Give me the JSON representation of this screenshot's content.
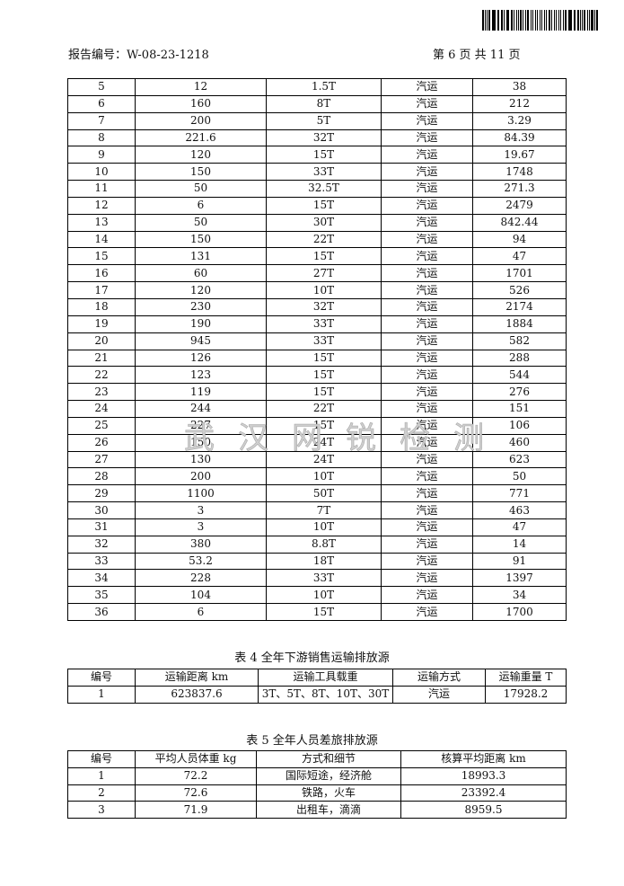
{
  "header": {
    "report_no": "报告编号：W-08-23-1218",
    "page_info": "第 6 页   共 11 页"
  },
  "watermark": "武汉网锐检测",
  "table3": {
    "rows": [
      [
        "5",
        "12",
        "1.5T",
        "汽运",
        "38"
      ],
      [
        "6",
        "160",
        "8T",
        "汽运",
        "212"
      ],
      [
        "7",
        "200",
        "5T",
        "汽运",
        "3.29"
      ],
      [
        "8",
        "221.6",
        "32T",
        "汽运",
        "84.39"
      ],
      [
        "9",
        "120",
        "15T",
        "汽运",
        "19.67"
      ],
      [
        "10",
        "150",
        "33T",
        "汽运",
        "1748"
      ],
      [
        "11",
        "50",
        "32.5T",
        "汽运",
        "271.3"
      ],
      [
        "12",
        "6",
        "15T",
        "汽运",
        "2479"
      ],
      [
        "13",
        "50",
        "30T",
        "汽运",
        "842.44"
      ],
      [
        "14",
        "150",
        "22T",
        "汽运",
        "94"
      ],
      [
        "15",
        "131",
        "15T",
        "汽运",
        "47"
      ],
      [
        "16",
        "60",
        "27T",
        "汽运",
        "1701"
      ],
      [
        "17",
        "120",
        "10T",
        "汽运",
        "526"
      ],
      [
        "18",
        "230",
        "32T",
        "汽运",
        "2174"
      ],
      [
        "19",
        "190",
        "33T",
        "汽运",
        "1884"
      ],
      [
        "20",
        "945",
        "33T",
        "汽运",
        "582"
      ],
      [
        "21",
        "126",
        "15T",
        "汽运",
        "288"
      ],
      [
        "22",
        "123",
        "15T",
        "汽运",
        "544"
      ],
      [
        "23",
        "119",
        "15T",
        "汽运",
        "276"
      ],
      [
        "24",
        "244",
        "22T",
        "汽运",
        "151"
      ],
      [
        "25",
        "227",
        "15T",
        "汽运",
        "106"
      ],
      [
        "26",
        "150",
        "24T",
        "汽运",
        "460"
      ],
      [
        "27",
        "130",
        "24T",
        "汽运",
        "623"
      ],
      [
        "28",
        "200",
        "10T",
        "汽运",
        "50"
      ],
      [
        "29",
        "1100",
        "50T",
        "汽运",
        "771"
      ],
      [
        "30",
        "3",
        "7T",
        "汽运",
        "463"
      ],
      [
        "31",
        "3",
        "10T",
        "汽运",
        "47"
      ],
      [
        "32",
        "380",
        "8.8T",
        "汽运",
        "14"
      ],
      [
        "33",
        "53.2",
        "18T",
        "汽运",
        "91"
      ],
      [
        "34",
        "228",
        "33T",
        "汽运",
        "1397"
      ],
      [
        "35",
        "104",
        "10T",
        "汽运",
        "34"
      ],
      [
        "36",
        "6",
        "15T",
        "汽运",
        "1700"
      ]
    ]
  },
  "table4": {
    "caption": "表 4  全年下游销售运输排放源",
    "headers": [
      "编号",
      "运输距离 km",
      "运输工具载重",
      "运输方式",
      "运输重量 T"
    ],
    "rows": [
      [
        "1",
        "623837.6",
        "3T、5T、8T、10T、30T",
        "汽运",
        "17928.2"
      ]
    ]
  },
  "table5": {
    "caption": "表 5  全年人员差旅排放源",
    "headers": [
      "编号",
      "平均人员体重 kg",
      "方式和细节",
      "核算平均距离 km"
    ],
    "rows": [
      [
        "1",
        "72.2",
        "国际短途，经济舱",
        "18993.3"
      ],
      [
        "2",
        "72.6",
        "铁路，火车",
        "23392.4"
      ],
      [
        "3",
        "71.9",
        "出租车，滴滴",
        "8959.5"
      ]
    ]
  }
}
